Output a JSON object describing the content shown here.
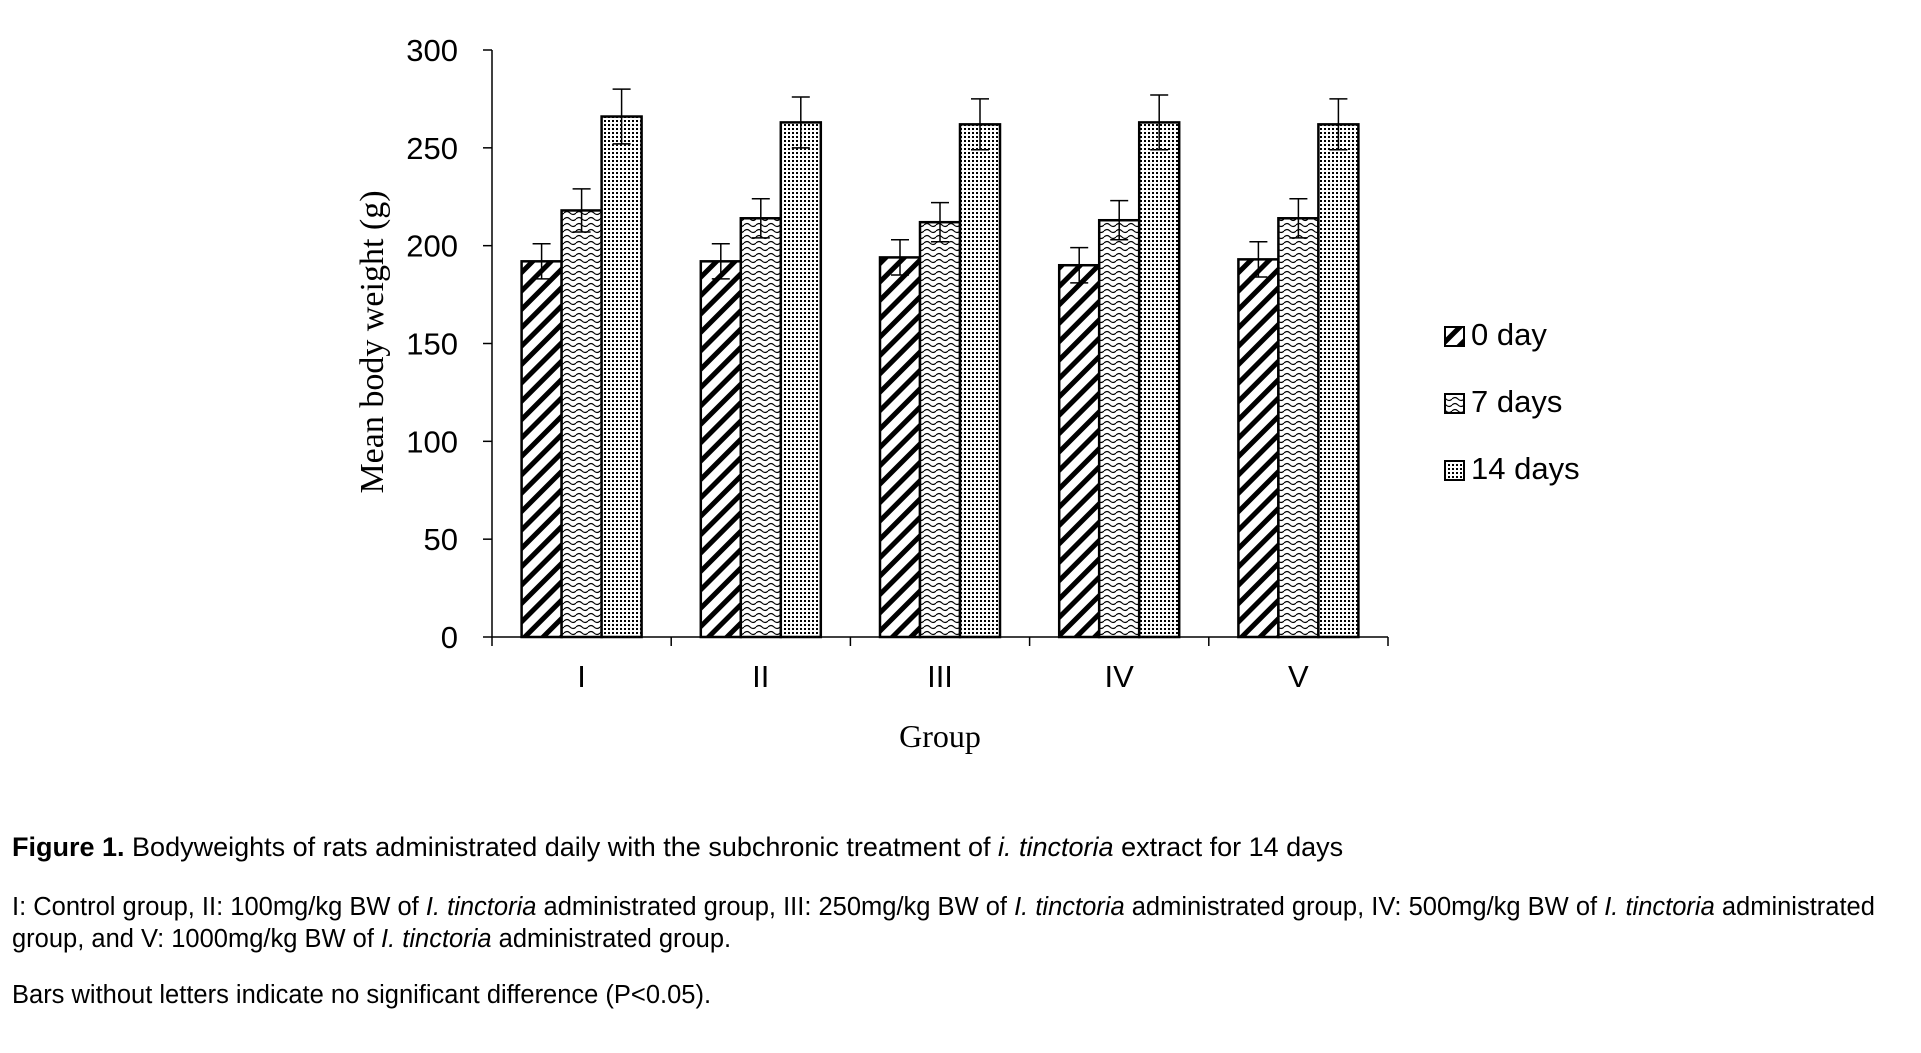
{
  "colors": {
    "ink": "#000000",
    "background": "#ffffff"
  },
  "chart_data": {
    "type": "bar",
    "title": "",
    "xlabel": "Group",
    "ylabel": "Mean body weight (g)",
    "ylim": [
      0,
      300
    ],
    "yticks": [
      "0",
      "50",
      "100",
      "150",
      "200",
      "250",
      "300"
    ],
    "categories": [
      "I",
      "II",
      "III",
      "IV",
      "V"
    ],
    "legend_position": "right",
    "grid": false,
    "series": [
      {
        "name": "0 day",
        "pattern": "diagonal-hatch",
        "values": [
          192,
          192,
          194,
          190,
          193
        ],
        "errors": [
          9,
          9,
          9,
          9,
          9
        ]
      },
      {
        "name": "7 days",
        "pattern": "wavy",
        "values": [
          218,
          214,
          212,
          213,
          214
        ],
        "errors": [
          11,
          10,
          10,
          10,
          10
        ]
      },
      {
        "name": "14 days",
        "pattern": "dotted",
        "values": [
          266,
          263,
          262,
          263,
          262
        ],
        "errors": [
          14,
          13,
          13,
          14,
          13
        ]
      }
    ]
  },
  "caption": {
    "title_bold": "Figure 1.",
    "title_text_1": "Bodyweights of rats administrated daily with the subchronic treatment of",
    "title_species": "i. tinctoria",
    "title_text_2": "extract for 14 days",
    "groups_1": "I: Control group, II: 100mg/kg BW of",
    "species_a": "I. tinctoria",
    "groups_2": "administrated group, III: 250mg/kg BW of",
    "species_b": "I. tinctoria",
    "groups_3": "administrated group, IV: 500mg/kg BW of",
    "species_c": "I. tinctoria",
    "groups_4": "administrated group, and V: 1000mg/kg BW of",
    "species_d": "I. tinctoria",
    "groups_5": "administrated group.",
    "note": "Bars without letters indicate no significant difference (P<0.05)."
  }
}
